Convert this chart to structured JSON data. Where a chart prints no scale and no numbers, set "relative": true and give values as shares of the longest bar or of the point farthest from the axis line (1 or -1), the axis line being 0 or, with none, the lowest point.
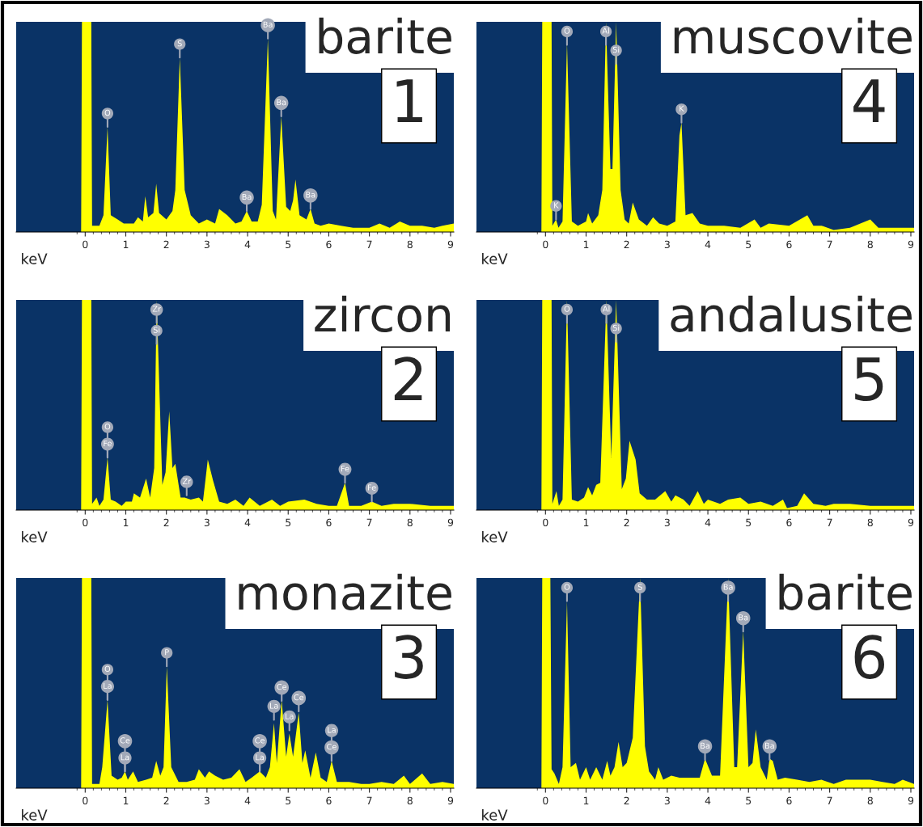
{
  "chart_data": [
    {
      "type": "area",
      "title": "barite",
      "subtitle": "1",
      "xlabel": "keV",
      "relative": true,
      "xlim": [
        -1.7,
        9.08
      ],
      "xticks": [
        0,
        1,
        2,
        3,
        4,
        5,
        6,
        7,
        8,
        9
      ],
      "tick_labels": "x",
      "grid": false,
      "legend": false,
      "series": [
        {
          "color": "#ffff00",
          "x": [
            -0.1,
            -0.08,
            0.15,
            0.17,
            0.35,
            0.45,
            0.55,
            0.63,
            0.8,
            0.95,
            1.2,
            1.3,
            1.42,
            1.48,
            1.55,
            1.68,
            1.75,
            1.82,
            2.0,
            2.15,
            2.22,
            2.33,
            2.45,
            2.6,
            2.8,
            3.0,
            3.2,
            3.3,
            3.5,
            3.7,
            3.85,
            3.98,
            4.1,
            4.25,
            4.35,
            4.5,
            4.62,
            4.7,
            4.83,
            4.95,
            5.05,
            5.12,
            5.18,
            5.28,
            5.45,
            5.55,
            5.65,
            5.8,
            6.0,
            6.3,
            6.6,
            7.0,
            7.25,
            7.5,
            7.75,
            8.0,
            8.3,
            8.6,
            8.8,
            9.08
          ],
          "values": [
            0,
            1,
            1,
            0.03,
            0.03,
            0.08,
            0.5,
            0.08,
            0.06,
            0.04,
            0.04,
            0.07,
            0.05,
            0.17,
            0.07,
            0.09,
            0.23,
            0.09,
            0.06,
            0.1,
            0.2,
            0.83,
            0.2,
            0.08,
            0.04,
            0.06,
            0.04,
            0.11,
            0.08,
            0.04,
            0.05,
            0.1,
            0.05,
            0.05,
            0.13,
            0.92,
            0.1,
            0.06,
            0.55,
            0.12,
            0.1,
            0.15,
            0.25,
            0.08,
            0.06,
            0.11,
            0.04,
            0.03,
            0.04,
            0.03,
            0.02,
            0.02,
            0.04,
            0.02,
            0.05,
            0.03,
            0.03,
            0.02,
            0.03,
            0.04
          ]
        }
      ],
      "annotations": [
        {
          "text": "O",
          "x": 0.55,
          "y": 0.5
        },
        {
          "text": "S",
          "x": 2.33,
          "y": 0.83
        },
        {
          "text": "Ba",
          "x": 4.5,
          "y": 0.92
        },
        {
          "text": "Ba",
          "x": 4.83,
          "y": 0.55
        },
        {
          "text": "Ba",
          "x": 3.98,
          "y": 0.1
        },
        {
          "text": "Ba",
          "x": 5.55,
          "y": 0.11
        }
      ]
    },
    {
      "type": "area",
      "title": "zircon",
      "subtitle": "2",
      "xlabel": "keV",
      "relative": true,
      "xlim": [
        -1.7,
        9.08
      ],
      "xticks": [
        0,
        1,
        2,
        3,
        4,
        5,
        6,
        7,
        8,
        9
      ],
      "tick_labels": "x",
      "grid": false,
      "legend": false,
      "series": [
        {
          "color": "#ffff00",
          "x": [
            -0.1,
            -0.08,
            0.15,
            0.17,
            0.28,
            0.35,
            0.45,
            0.55,
            0.63,
            0.75,
            0.9,
            1.0,
            1.15,
            1.2,
            1.35,
            1.5,
            1.6,
            1.7,
            1.76,
            1.9,
            1.98,
            2.07,
            2.15,
            2.22,
            2.35,
            2.45,
            2.6,
            2.8,
            2.9,
            3.02,
            3.15,
            3.3,
            3.5,
            3.7,
            3.9,
            4.05,
            4.3,
            4.6,
            4.8,
            5.0,
            5.4,
            5.7,
            6.0,
            6.2,
            6.4,
            6.5,
            6.8,
            7.06,
            7.3,
            7.6,
            8.0,
            8.5,
            9.08
          ],
          "values": [
            0,
            1,
            1,
            0.03,
            0.06,
            0.02,
            0.05,
            0.25,
            0.05,
            0.04,
            0.02,
            0.04,
            0.04,
            0.08,
            0.06,
            0.15,
            0.06,
            0.2,
            1,
            0.12,
            0.18,
            0.47,
            0.2,
            0.22,
            0.06,
            0.06,
            0.05,
            0.06,
            0.04,
            0.24,
            0.14,
            0.04,
            0.03,
            0.05,
            0.02,
            0.06,
            0.02,
            0.05,
            0.02,
            0.04,
            0.05,
            0.03,
            0.02,
            0.02,
            0.13,
            0.02,
            0.02,
            0.04,
            0.02,
            0.03,
            0.03,
            0.02,
            0.02
          ]
        }
      ],
      "annotations": [
        {
          "text": "Zr",
          "x": 1.76,
          "y": 0.89
        },
        {
          "text": "Si",
          "x": 1.76,
          "y": 0.79
        },
        {
          "text": "O",
          "x": 0.55,
          "y": 0.25
        },
        {
          "text": "Fe",
          "x": 0.55,
          "y": 0.25
        },
        {
          "text": "Zr",
          "x": 2.5,
          "y": 0.07
        },
        {
          "text": "Fe",
          "x": 6.4,
          "y": 0.13
        },
        {
          "text": "Fe",
          "x": 7.06,
          "y": 0.04
        }
      ]
    },
    {
      "type": "area",
      "title": "monazite",
      "subtitle": "3",
      "xlabel": "keV",
      "relative": true,
      "xlim": [
        -1.7,
        9.08
      ],
      "xticks": [
        0,
        1,
        2,
        3,
        4,
        5,
        6,
        7,
        8,
        9
      ],
      "tick_labels": "x",
      "grid": false,
      "legend": false,
      "series": [
        {
          "color": "#ffff00",
          "x": [
            -0.1,
            -0.08,
            0.15,
            0.17,
            0.35,
            0.42,
            0.55,
            0.65,
            0.8,
            0.9,
            0.98,
            1.05,
            1.18,
            1.3,
            1.5,
            1.65,
            1.75,
            1.85,
            1.93,
            2.01,
            2.12,
            2.3,
            2.5,
            2.7,
            2.8,
            2.95,
            3.05,
            3.2,
            3.4,
            3.6,
            3.8,
            3.95,
            4.1,
            4.3,
            4.45,
            4.55,
            4.65,
            4.72,
            4.84,
            4.95,
            5.03,
            5.12,
            5.26,
            5.35,
            5.42,
            5.55,
            5.68,
            5.8,
            5.95,
            6.07,
            6.2,
            6.5,
            6.8,
            7.0,
            7.3,
            7.6,
            7.85,
            8.0,
            8.3,
            8.5,
            8.8,
            9.08
          ],
          "values": [
            0,
            1,
            1,
            0.02,
            0.02,
            0.1,
            0.42,
            0.06,
            0.04,
            0.05,
            0.08,
            0.04,
            0.08,
            0.03,
            0.04,
            0.05,
            0.13,
            0.06,
            0.1,
            0.58,
            0.1,
            0.03,
            0.03,
            0.04,
            0.09,
            0.05,
            0.08,
            0.06,
            0.04,
            0.05,
            0.09,
            0.03,
            0.05,
            0.08,
            0.05,
            0.1,
            0.31,
            0.12,
            0.42,
            0.15,
            0.26,
            0.15,
            0.36,
            0.12,
            0.18,
            0.05,
            0.17,
            0.05,
            0.03,
            0.13,
            0.03,
            0.03,
            0.02,
            0.02,
            0.03,
            0.02,
            0.06,
            0.02,
            0.07,
            0.02,
            0.03,
            0.02
          ]
        }
      ],
      "annotations": [
        {
          "text": "O",
          "x": 0.55,
          "y": 0.42
        },
        {
          "text": "La",
          "x": 0.55,
          "y": 0.42
        },
        {
          "text": "Ce",
          "x": 0.98,
          "y": 0.08
        },
        {
          "text": "La",
          "x": 0.98,
          "y": 0.08
        },
        {
          "text": "P",
          "x": 2.01,
          "y": 0.58
        },
        {
          "text": "Ce",
          "x": 4.3,
          "y": 0.08
        },
        {
          "text": "La",
          "x": 4.3,
          "y": 0.08
        },
        {
          "text": "La",
          "x": 4.65,
          "y": 0.325
        },
        {
          "text": "Ce",
          "x": 4.84,
          "y": 0.415
        },
        {
          "text": "La",
          "x": 5.03,
          "y": 0.275
        },
        {
          "text": "Ce",
          "x": 5.26,
          "y": 0.365
        },
        {
          "text": "La",
          "x": 6.07,
          "y": 0.13
        },
        {
          "text": "Ce",
          "x": 6.07,
          "y": 0.13
        }
      ]
    },
    {
      "type": "area",
      "title": "muscovite",
      "subtitle": "4",
      "xlabel": "keV",
      "relative": true,
      "xlim": [
        -1.7,
        9.08
      ],
      "xticks": [
        0,
        1,
        2,
        3,
        4,
        5,
        6,
        7,
        8,
        9
      ],
      "tick_labels": "x",
      "grid": false,
      "legend": false,
      "series": [
        {
          "color": "#ffff00",
          "x": [
            -0.1,
            -0.08,
            0.15,
            0.17,
            0.26,
            0.32,
            0.42,
            0.53,
            0.65,
            0.8,
            1.0,
            1.05,
            1.15,
            1.3,
            1.4,
            1.49,
            1.6,
            1.65,
            1.74,
            1.85,
            1.95,
            2.05,
            2.15,
            2.3,
            2.5,
            2.65,
            2.8,
            3.0,
            3.2,
            3.3,
            3.35,
            3.45,
            3.62,
            3.8,
            4.0,
            4.4,
            4.8,
            5.15,
            5.3,
            5.5,
            6.0,
            6.45,
            6.6,
            6.8,
            7.1,
            7.5,
            8.0,
            8.2,
            8.6,
            9.08
          ],
          "values": [
            0,
            1,
            1,
            0.03,
            0.06,
            0.02,
            0.05,
            0.9,
            0.05,
            0.03,
            0.05,
            0.09,
            0.04,
            0.08,
            0.2,
            1,
            0.3,
            0.3,
            1,
            0.2,
            0.06,
            0.04,
            0.14,
            0.06,
            0.03,
            0.07,
            0.04,
            0.03,
            0.05,
            0.46,
            0.52,
            0.08,
            0.09,
            0.04,
            0.03,
            0.03,
            0.02,
            0.06,
            0.02,
            0.04,
            0.03,
            0.08,
            0.03,
            0.03,
            0.01,
            0.02,
            0.06,
            0.02,
            0.02,
            0.02
          ]
        }
      ],
      "annotations": [
        {
          "text": "O",
          "x": 0.53,
          "y": 0.89
        },
        {
          "text": "Al",
          "x": 1.49,
          "y": 0.89
        },
        {
          "text": "Si",
          "x": 1.74,
          "y": 0.8
        },
        {
          "text": "K",
          "x": 3.35,
          "y": 0.52
        },
        {
          "text": "K",
          "x": 0.26,
          "y": 0.06
        }
      ]
    },
    {
      "type": "area",
      "title": "andalusite",
      "subtitle": "5",
      "xlabel": "keV",
      "relative": true,
      "xlim": [
        -1.7,
        9.08
      ],
      "xticks": [
        0,
        1,
        2,
        3,
        4,
        5,
        6,
        7,
        8,
        9
      ],
      "tick_labels": "x",
      "grid": false,
      "legend": false,
      "series": [
        {
          "color": "#ffff00",
          "x": [
            -0.1,
            -0.08,
            0.15,
            0.17,
            0.27,
            0.33,
            0.42,
            0.53,
            0.65,
            0.8,
            0.95,
            1.05,
            1.15,
            1.25,
            1.35,
            1.5,
            1.62,
            1.74,
            1.88,
            1.98,
            2.07,
            2.22,
            2.32,
            2.5,
            2.7,
            2.95,
            3.1,
            3.2,
            3.4,
            3.55,
            3.75,
            3.9,
            4.0,
            4.3,
            4.5,
            4.8,
            5.0,
            5.3,
            5.6,
            5.85,
            5.95,
            6.2,
            6.37,
            6.6,
            6.9,
            7.1,
            7.5,
            8.0,
            8.5,
            9.08
          ],
          "values": [
            0,
            1,
            1,
            0.03,
            0.09,
            0.02,
            0.05,
            1,
            0.05,
            0.04,
            0.06,
            0.11,
            0.07,
            0.12,
            0.13,
            1,
            0.25,
            1,
            0.1,
            0.15,
            0.33,
            0.24,
            0.08,
            0.05,
            0.05,
            0.09,
            0.04,
            0.07,
            0.05,
            0.02,
            0.09,
            0.03,
            0.05,
            0.03,
            0.05,
            0.06,
            0.03,
            0.04,
            0.02,
            0.05,
            0.01,
            0.02,
            0.08,
            0.03,
            0.02,
            0.03,
            0.03,
            0.02,
            0.02,
            0.02
          ]
        }
      ],
      "annotations": [
        {
          "text": "O",
          "x": 0.53,
          "y": 0.89
        },
        {
          "text": "Al",
          "x": 1.5,
          "y": 0.89
        },
        {
          "text": "Si",
          "x": 1.74,
          "y": 0.8
        }
      ]
    },
    {
      "type": "area",
      "title": "barite",
      "subtitle": "6",
      "xlabel": "keV",
      "relative": true,
      "xlim": [
        -1.7,
        9.08
      ],
      "xticks": [
        0,
        1,
        2,
        3,
        4,
        5,
        6,
        7,
        8,
        9
      ],
      "tick_labels": "x",
      "grid": false,
      "legend": false,
      "series": [
        {
          "color": "#ffff00",
          "x": [
            -0.1,
            -0.08,
            0.12,
            0.15,
            0.22,
            0.33,
            0.42,
            0.53,
            0.62,
            0.75,
            0.85,
            1.0,
            1.1,
            1.25,
            1.4,
            1.52,
            1.6,
            1.7,
            1.8,
            1.9,
            2.0,
            2.15,
            2.33,
            2.45,
            2.55,
            2.7,
            2.78,
            2.9,
            3.1,
            3.3,
            3.6,
            3.8,
            3.93,
            4.1,
            4.3,
            4.5,
            4.65,
            4.72,
            4.87,
            5.0,
            5.1,
            5.18,
            5.3,
            5.45,
            5.52,
            5.6,
            5.72,
            5.9,
            6.2,
            6.5,
            6.8,
            7.1,
            7.4,
            7.7,
            8.0,
            8.3,
            8.6,
            8.8,
            9.08
          ],
          "values": [
            0,
            1,
            1,
            0.09,
            0.07,
            0.02,
            0.1,
            0.89,
            0.1,
            0.12,
            0.04,
            0.1,
            0.04,
            0.1,
            0.04,
            0.13,
            0.06,
            0.1,
            0.22,
            0.1,
            0.12,
            0.24,
            1,
            0.2,
            0.08,
            0.04,
            0.1,
            0.04,
            0.06,
            0.05,
            0.05,
            0.05,
            0.14,
            0.06,
            0.06,
            1,
            0.1,
            0.1,
            0.75,
            0.1,
            0.12,
            0.28,
            0.1,
            0.04,
            0.14,
            0.13,
            0.04,
            0.05,
            0.04,
            0.03,
            0.04,
            0.02,
            0.04,
            0.04,
            0.04,
            0.03,
            0.02,
            0.04,
            0.02
          ]
        }
      ],
      "annotations": [
        {
          "text": "O",
          "x": 0.53,
          "y": 0.89
        },
        {
          "text": "S",
          "x": 2.33,
          "y": 0.89
        },
        {
          "text": "Ba",
          "x": 4.5,
          "y": 0.89
        },
        {
          "text": "Ba",
          "x": 4.87,
          "y": 0.745
        },
        {
          "text": "Ba",
          "x": 3.93,
          "y": 0.135
        },
        {
          "text": "Ba",
          "x": 5.52,
          "y": 0.135
        }
      ]
    }
  ]
}
